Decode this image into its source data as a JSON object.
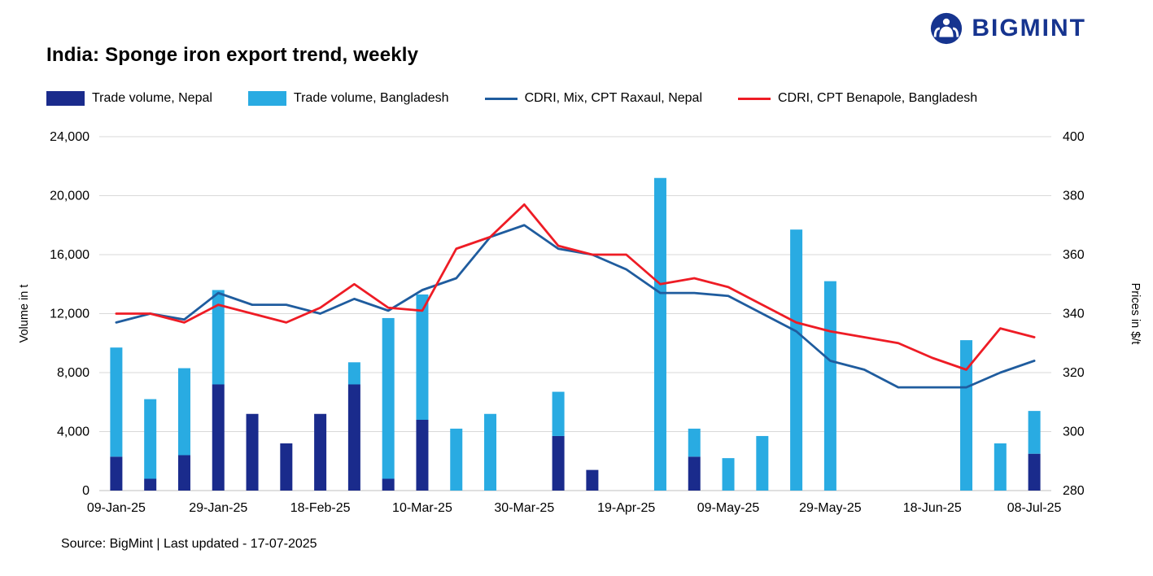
{
  "header": {
    "title": "India: Sponge iron export trend, weekly",
    "logo_text": "BIGMINT"
  },
  "colors": {
    "brand_navy": "#16348f",
    "nepal_bar": "#1a2b8c",
    "bangladesh_bar": "#29abe2",
    "nepal_line": "#1f5c9e",
    "bangladesh_line": "#ee1c25",
    "gridline": "#d9d9d9",
    "axis_line": "#bfbfbf"
  },
  "chart_data": {
    "type": "combo",
    "stacked_bars": true,
    "n_points": 28,
    "x_tick_labels": [
      "09-Jan-25",
      "29-Jan-25",
      "18-Feb-25",
      "10-Mar-25",
      "30-Mar-25",
      "19-Apr-25",
      "09-May-25",
      "29-May-25",
      "18-Jun-25",
      "08-Jul-25"
    ],
    "x_tick_slots": [
      0,
      3,
      6,
      9,
      12,
      15,
      18,
      21,
      24,
      27
    ],
    "left_axis": {
      "title": "Volume in t",
      "min": 0,
      "max": 24000,
      "step": 4000
    },
    "right_axis": {
      "title": "Prices in $/t",
      "min": 280,
      "max": 400,
      "step": 20
    },
    "bar_series": [
      {
        "name": "Trade volume, Nepal",
        "axis": "left",
        "color": "#1a2b8c",
        "values": [
          2300,
          800,
          2400,
          7200,
          5200,
          3200,
          5200,
          7200,
          800,
          4800,
          0,
          0,
          0,
          3700,
          1400,
          0,
          0,
          2300,
          0,
          0,
          0,
          0,
          0,
          0,
          0,
          0,
          0,
          2500
        ]
      },
      {
        "name": "Trade volume, Bangladesh",
        "axis": "left",
        "color": "#29abe2",
        "values": [
          7400,
          5400,
          5900,
          6400,
          0,
          0,
          0,
          1500,
          10900,
          8500,
          4200,
          5200,
          0,
          3000,
          0,
          0,
          21200,
          1900,
          2200,
          3700,
          17700,
          14200,
          0,
          0,
          0,
          10200,
          3200,
          2900
        ]
      }
    ],
    "line_series": [
      {
        "name": "CDRI, Mix, CPT Raxaul, Nepal",
        "axis": "right",
        "color": "#1f5c9e",
        "values": [
          337,
          340,
          338,
          347,
          343,
          343,
          340,
          345,
          341,
          348,
          352,
          366,
          370,
          362,
          360,
          355,
          347,
          347,
          346,
          340,
          334,
          324,
          321,
          315,
          315,
          315,
          320,
          324
        ]
      },
      {
        "name": "CDRI, CPT Benapole, Bangladesh",
        "axis": "right",
        "color": "#ee1c25",
        "values": [
          340,
          340,
          337,
          343,
          340,
          337,
          342,
          350,
          342,
          341,
          362,
          366,
          377,
          363,
          360,
          360,
          350,
          352,
          349,
          343,
          337,
          334,
          332,
          330,
          325,
          321,
          335,
          332
        ]
      }
    ]
  },
  "footer": {
    "source": "Source: BigMint | Last updated - 17-07-2025"
  }
}
